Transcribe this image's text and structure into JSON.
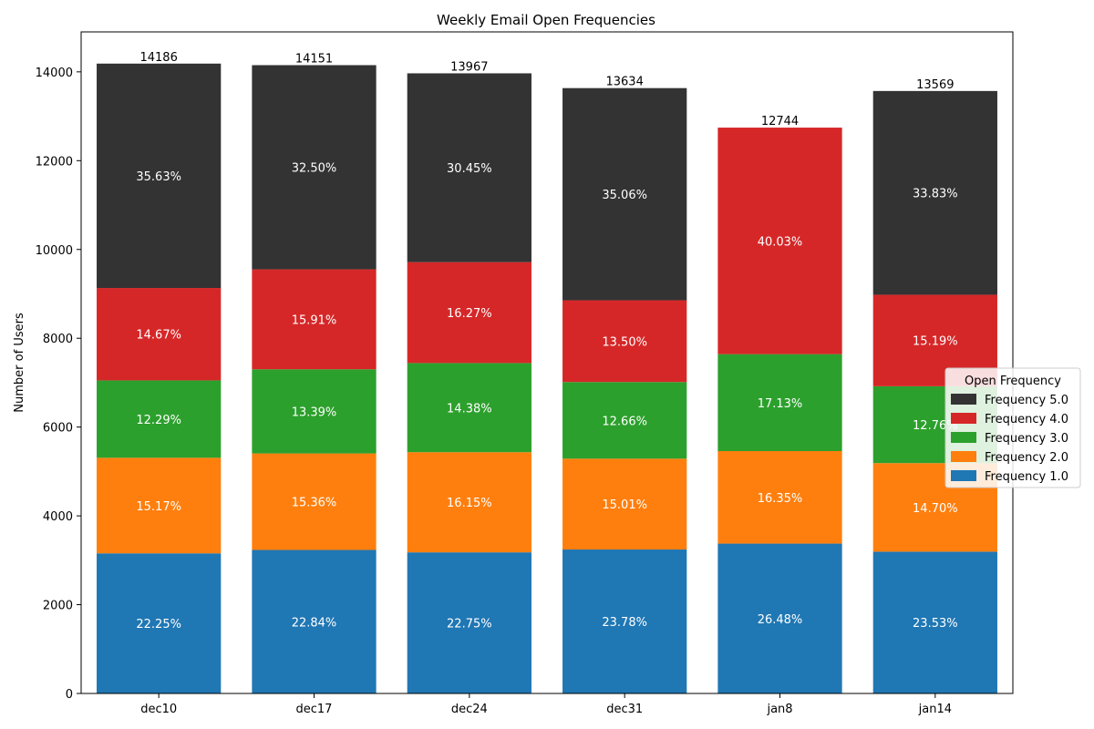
{
  "chart_data": {
    "type": "bar",
    "stacked": true,
    "title": "Weekly Email Open Frequencies",
    "xlabel": "",
    "ylabel": "Number of Users",
    "ylim": [
      0,
      14900
    ],
    "yticks": [
      0,
      2000,
      4000,
      6000,
      8000,
      10000,
      12000,
      14000
    ],
    "grid": false,
    "legend": {
      "title": "Open Frequency",
      "placement": "right"
    },
    "categories": [
      "dec10",
      "dec17",
      "dec24",
      "dec31",
      "jan8",
      "jan14"
    ],
    "totals": [
      "14186",
      "14151",
      "13967",
      "13634",
      "12744",
      "13569"
    ],
    "series": [
      {
        "name": "Frequency 1.0",
        "color": "#1f77b4",
        "values": [
          3156,
          3232,
          3178,
          3242,
          3375,
          3193
        ],
        "labels": [
          "22.25%",
          "22.84%",
          "22.75%",
          "23.78%",
          "26.48%",
          "23.53%"
        ]
      },
      {
        "name": "Frequency 2.0",
        "color": "#ff7f0e",
        "values": [
          2152,
          2174,
          2256,
          2046,
          2084,
          1995
        ],
        "labels": [
          "15.17%",
          "15.36%",
          "16.15%",
          "15.01%",
          "16.35%",
          "14.70%"
        ]
      },
      {
        "name": "Frequency 3.0",
        "color": "#2ca02c",
        "values": [
          1743,
          1895,
          2008,
          1726,
          2183,
          1731
        ],
        "labels": [
          "12.29%",
          "13.39%",
          "14.38%",
          "12.66%",
          "17.13%",
          "12.76%"
        ]
      },
      {
        "name": "Frequency 4.0",
        "color": "#d62728",
        "values": [
          2081,
          2251,
          2272,
          1841,
          5102,
          2061
        ],
        "labels": [
          "14.67%",
          "15.91%",
          "16.27%",
          "13.50%",
          "40.03%",
          "15.19%"
        ]
      },
      {
        "name": "Frequency 5.0",
        "color": "#333333",
        "values": [
          5054,
          4599,
          4253,
          4779,
          0,
          4589
        ],
        "labels": [
          "35.63%",
          "32.50%",
          "30.45%",
          "35.06%",
          "",
          "33.83%"
        ]
      }
    ]
  }
}
